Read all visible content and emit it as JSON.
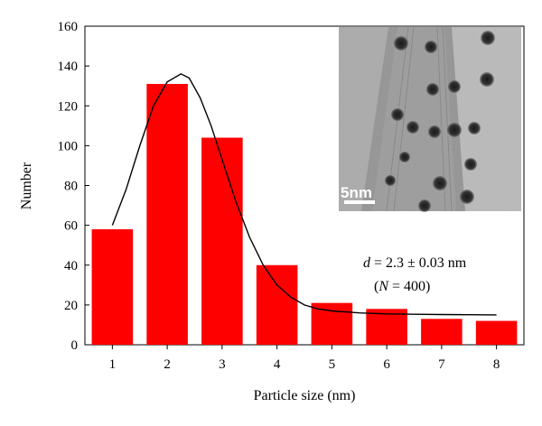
{
  "chart_data": {
    "type": "bar",
    "title": "",
    "xlabel": "Particle size (nm)",
    "ylabel": "Number",
    "categories": [
      "1",
      "2",
      "3",
      "4",
      "5",
      "6",
      "7",
      "8"
    ],
    "values": [
      58,
      131,
      104,
      40,
      21,
      18,
      13,
      12
    ],
    "ylim": [
      0,
      160
    ],
    "y_ticks": [
      "0",
      "20",
      "40",
      "60",
      "80",
      "100",
      "120",
      "140",
      "160"
    ],
    "bar_color": "#ff0000",
    "grid": false,
    "fit_curve": {
      "type": "lognormal-fit",
      "x": [
        1,
        1.25,
        1.5,
        1.75,
        2,
        2.25,
        2.4,
        2.6,
        2.8,
        3,
        3.25,
        3.5,
        3.75,
        4,
        4.25,
        4.5,
        4.75,
        5,
        5.5,
        6,
        6.5,
        7,
        7.5,
        8
      ],
      "y": [
        60,
        78,
        100,
        120,
        132,
        136,
        134,
        124,
        110,
        93,
        72,
        54,
        40,
        30,
        24,
        20,
        18,
        17,
        16,
        15.5,
        15.3,
        15.2,
        15.1,
        15
      ]
    },
    "annotation": {
      "line1_var": "d",
      "line1_rest": " = 2.3 ± 0.03 nm",
      "line2_open": "(",
      "line2_var": "N",
      "line2_rest": " = 400)"
    },
    "inset": {
      "scale_label": "5nm",
      "description": "TEM micrograph"
    }
  }
}
